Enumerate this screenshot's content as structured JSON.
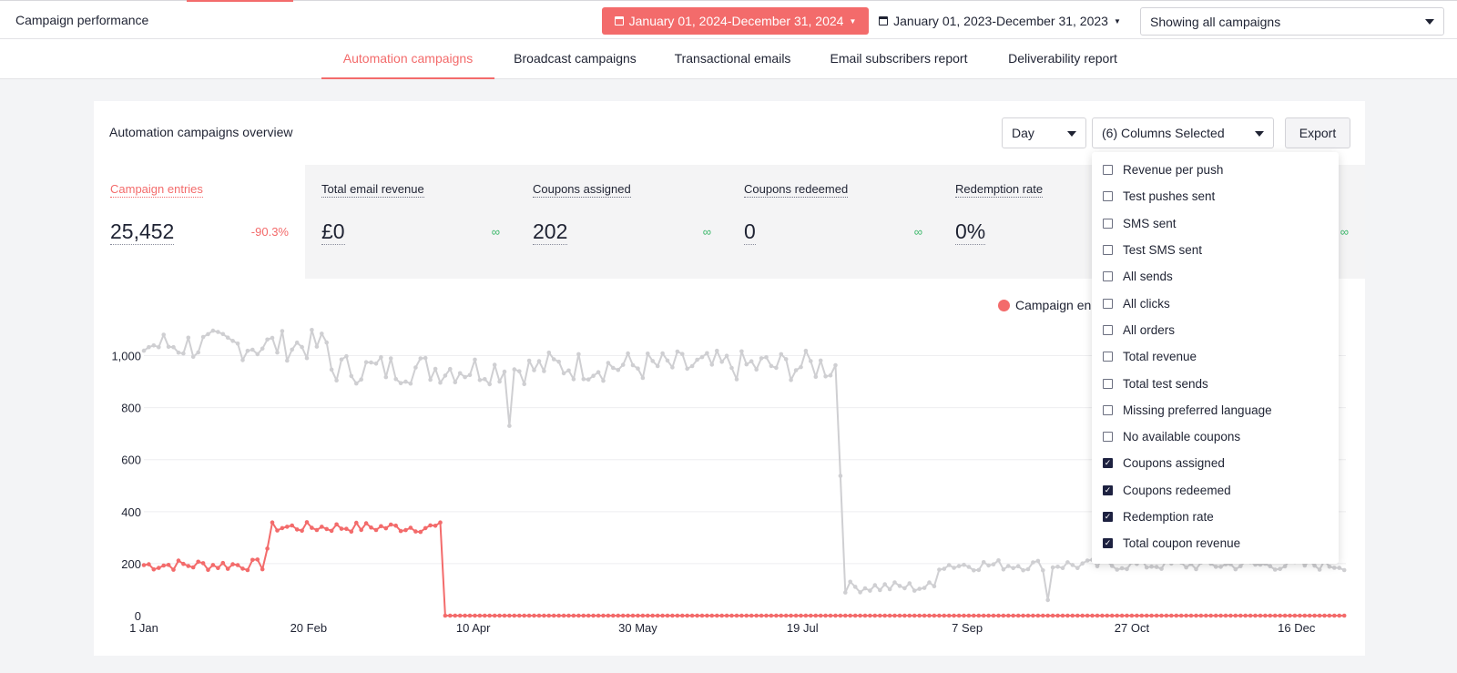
{
  "header": {
    "title": "Campaign performance",
    "date_range_primary": "January 01, 2024-December 31, 2024",
    "date_range_compare": "January 01, 2023-December 31, 2023",
    "campaign_filter": "Showing all campaigns"
  },
  "tabs": [
    {
      "label": "Automation campaigns",
      "active": true
    },
    {
      "label": "Broadcast campaigns",
      "active": false
    },
    {
      "label": "Transactional emails",
      "active": false
    },
    {
      "label": "Email subscribers report",
      "active": false
    },
    {
      "label": "Deliverability report",
      "active": false
    }
  ],
  "overview": {
    "title": "Automation campaigns overview",
    "granularity": "Day",
    "columns_selected": "(6) Columns Selected",
    "export_label": "Export"
  },
  "metrics": [
    {
      "label": "Campaign entries",
      "value": "25,452",
      "change": "-90.3%"
    },
    {
      "label": "Total email revenue",
      "value": "£0",
      "change": "∞"
    },
    {
      "label": "Coupons assigned",
      "value": "202",
      "change": "∞"
    },
    {
      "label": "Coupons redeemed",
      "value": "0",
      "change": "∞"
    },
    {
      "label": "Redemption rate",
      "value": "0%",
      "change": ""
    },
    {
      "label": "",
      "value": "",
      "change": "∞"
    }
  ],
  "column_options": [
    {
      "label": "Revenue per push",
      "checked": false
    },
    {
      "label": "Test pushes sent",
      "checked": false
    },
    {
      "label": "SMS sent",
      "checked": false
    },
    {
      "label": "Test SMS sent",
      "checked": false
    },
    {
      "label": "All sends",
      "checked": false
    },
    {
      "label": "All clicks",
      "checked": false
    },
    {
      "label": "All orders",
      "checked": false
    },
    {
      "label": "Total revenue",
      "checked": false
    },
    {
      "label": "Total test sends",
      "checked": false
    },
    {
      "label": "Missing preferred language",
      "checked": false
    },
    {
      "label": "No available coupons",
      "checked": false
    },
    {
      "label": "Coupons assigned",
      "checked": true
    },
    {
      "label": "Coupons redeemed",
      "checked": true
    },
    {
      "label": "Redemption rate",
      "checked": true
    },
    {
      "label": "Total coupon revenue",
      "checked": true
    }
  ],
  "colors": {
    "accent": "#f36b6b",
    "comparison": "#cfcfd2",
    "positive": "#3bb86a",
    "dark": "#1d2140"
  },
  "chart_data": {
    "type": "line",
    "legend_visible_text": "Campaign en",
    "ylim": [
      0,
      1100
    ],
    "y_ticks": [
      0,
      200,
      400,
      600,
      800,
      1000
    ],
    "y_tick_labels": [
      "0",
      "200",
      "400",
      "600",
      "800",
      "1,000"
    ],
    "x_tick_labels": [
      "1 Jan",
      "20 Feb",
      "10 Apr",
      "30 May",
      "19 Jul",
      "7 Sep",
      "27 Oct",
      "16 Dec"
    ],
    "x_tick_days": [
      0,
      50,
      100,
      150,
      200,
      250,
      300,
      350
    ],
    "series": [
      {
        "color": "#f36b6b",
        "segments": [
          {
            "from_day": 0,
            "to_day": 36,
            "level": 195
          },
          {
            "from_day": 36,
            "to_day": 38,
            "level": 260
          },
          {
            "from_day": 38,
            "to_day": 90,
            "level": 340
          },
          {
            "from_day": 90,
            "to_day": 91,
            "level": 90
          },
          {
            "from_day": 91,
            "to_day": 365,
            "level": 0
          }
        ]
      },
      {
        "color": "#cfcfd2",
        "segments": [
          {
            "from_day": 0,
            "to_day": 56,
            "level": 1040
          },
          {
            "from_day": 56,
            "to_day": 120,
            "level": 950
          },
          {
            "from_day": 120,
            "to_day": 210,
            "level": 960
          },
          {
            "from_day": 210,
            "to_day": 212,
            "level": 545
          },
          {
            "from_day": 212,
            "to_day": 240,
            "level": 110
          },
          {
            "from_day": 240,
            "to_day": 365,
            "level": 195
          }
        ],
        "dips": [
          {
            "day": 111,
            "value": 730
          },
          {
            "day": 274,
            "value": 60
          }
        ]
      }
    ]
  }
}
